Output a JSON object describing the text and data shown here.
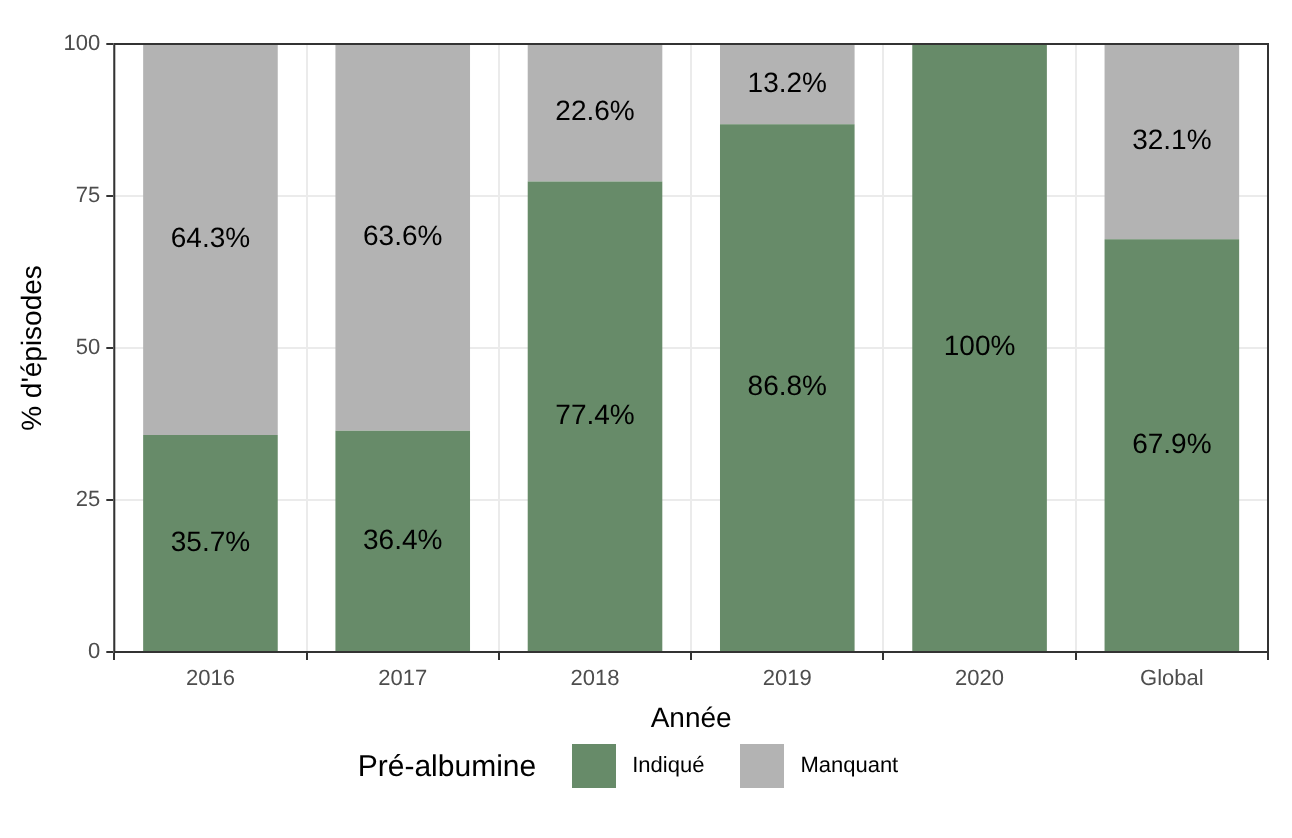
{
  "chart_data": {
    "type": "bar",
    "stacked": true,
    "xlabel": "Année",
    "ylabel": "% d'épisodes",
    "legend_title": "Pré-albumine",
    "legend": "bottom",
    "grid": true,
    "categories": [
      "2016",
      "2017",
      "2018",
      "2019",
      "2020",
      "Global"
    ],
    "ylim": [
      0,
      100
    ],
    "yticks": [
      0,
      25,
      50,
      75,
      100
    ],
    "series": [
      {
        "name": "Indiqué",
        "color": "#678b69",
        "values": [
          35.7,
          36.4,
          77.4,
          86.8,
          100,
          67.9
        ],
        "value_labels": [
          "35.7%",
          "36.4%",
          "77.4%",
          "86.8%",
          "100%",
          "67.9%"
        ]
      },
      {
        "name": "Manquant",
        "color": "#b3b3b3",
        "values": [
          64.3,
          63.6,
          22.6,
          13.2,
          0,
          32.1
        ],
        "value_labels": [
          "64.3%",
          "63.6%",
          "22.6%",
          "13.2%",
          null,
          "32.1%"
        ]
      }
    ]
  }
}
